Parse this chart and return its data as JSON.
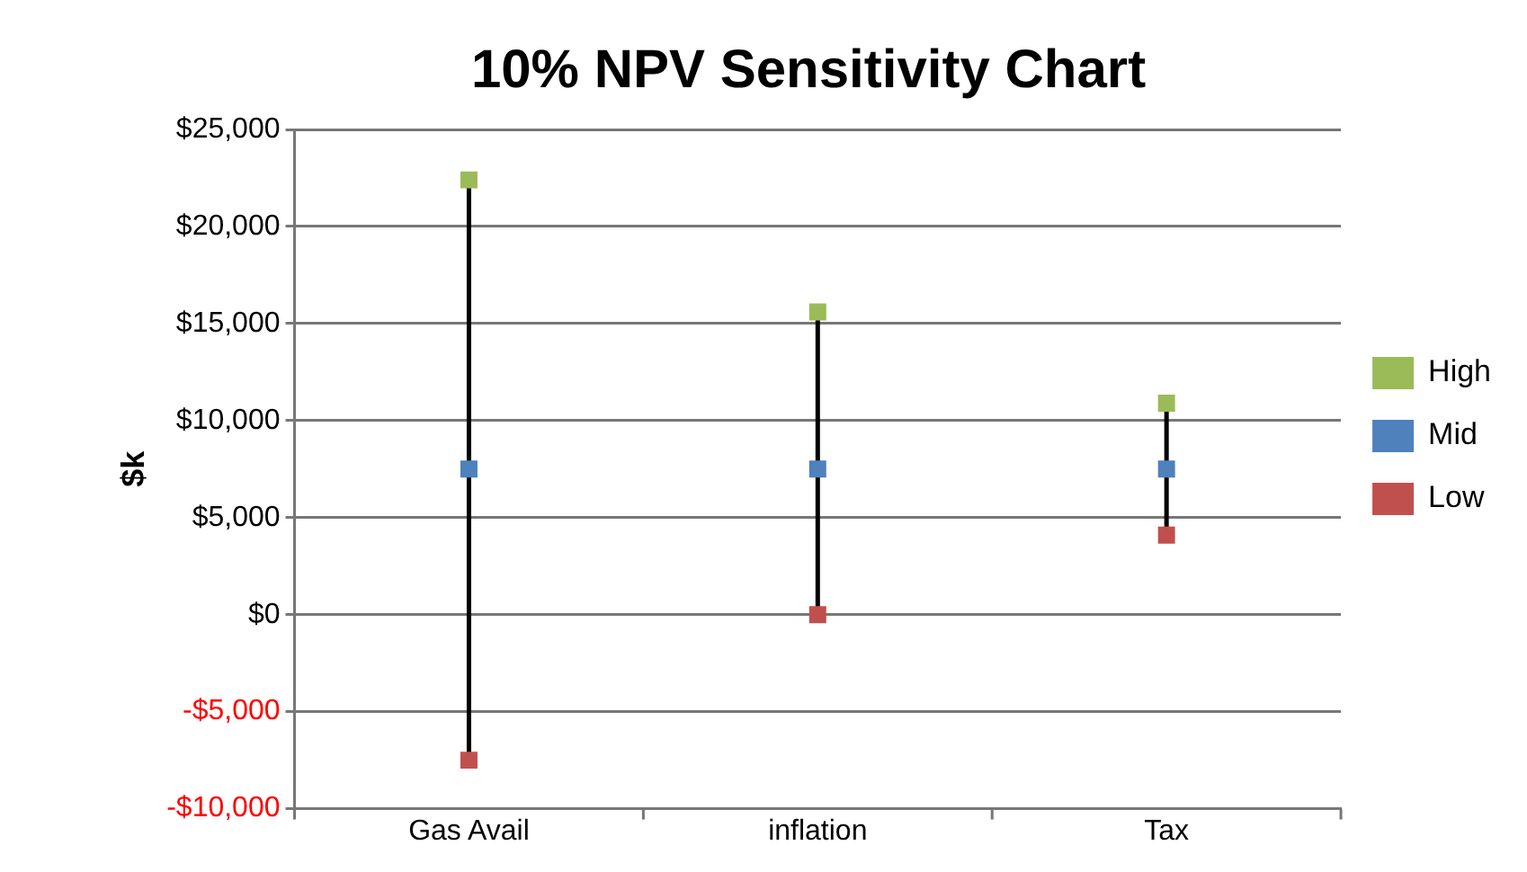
{
  "chart_data": {
    "type": "scatter",
    "title": "10% NPV Sensitivity Chart",
    "ylabel": "$k",
    "categories": [
      "Gas Avail",
      "inflation",
      "Tax"
    ],
    "series": [
      {
        "name": "High",
        "color": "#9bbb59",
        "values": [
          22400,
          15600,
          10900
        ]
      },
      {
        "name": "Mid",
        "color": "#4f81bd",
        "values": [
          7500,
          7500,
          7500
        ]
      },
      {
        "name": "Low",
        "color": "#c0504d",
        "values": [
          -7500,
          0,
          4100
        ]
      }
    ],
    "ylim": [
      -10000,
      25000
    ],
    "yticks": [
      {
        "value": -10000,
        "label": "-$10,000"
      },
      {
        "value": -5000,
        "label": "-$5,000"
      },
      {
        "value": 0,
        "label": "$0"
      },
      {
        "value": 5000,
        "label": "$5,000"
      },
      {
        "value": 10000,
        "label": "$10,000"
      },
      {
        "value": 15000,
        "label": "$15,000"
      },
      {
        "value": 20000,
        "label": "$20,000"
      },
      {
        "value": 25000,
        "label": "$25,000"
      }
    ],
    "grid": "y",
    "legend": "right",
    "marker": "square"
  }
}
